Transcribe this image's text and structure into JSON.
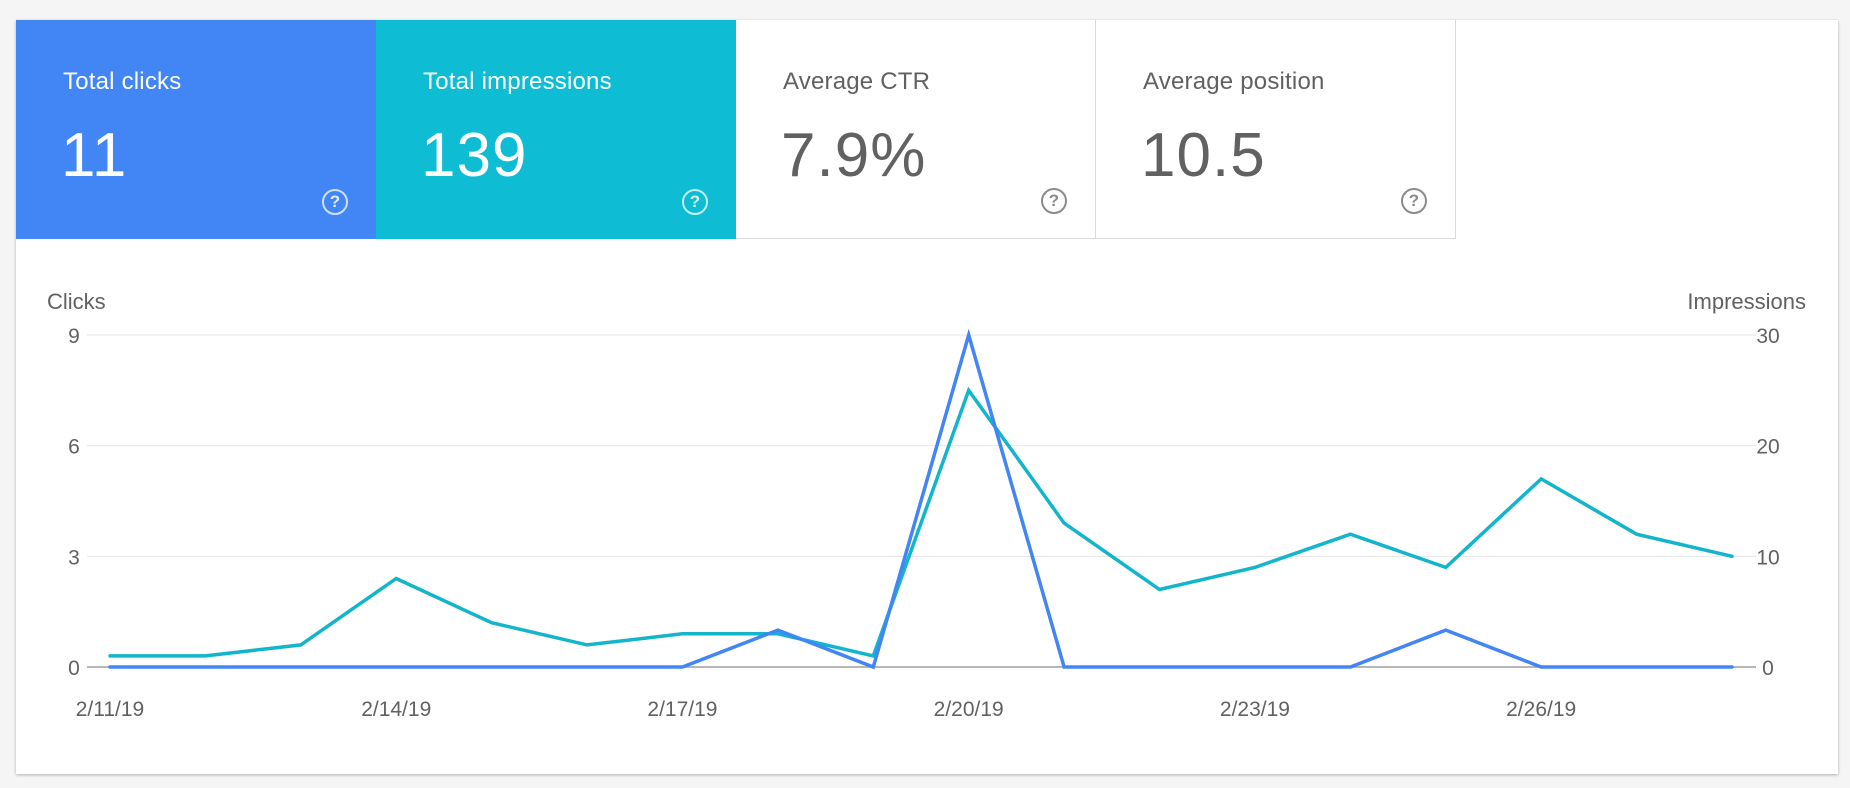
{
  "tiles": [
    {
      "label": "Total clicks",
      "value": "11",
      "active": true,
      "color": "#4285f4",
      "help_icon": "help-circle-icon"
    },
    {
      "label": "Total impressions",
      "value": "139",
      "active": true,
      "color": "#0ebcd4",
      "help_icon": "help-circle-icon"
    },
    {
      "label": "Average CTR",
      "value": "7.9%",
      "active": false,
      "color": "#ffffff",
      "help_icon": "help-circle-icon"
    },
    {
      "label": "Average position",
      "value": "10.5",
      "active": false,
      "color": "#ffffff",
      "help_icon": "help-circle-icon"
    }
  ],
  "help_glyph": "?",
  "chart_data": {
    "type": "line",
    "x": [
      "2/11/19",
      "2/12/19",
      "2/13/19",
      "2/14/19",
      "2/15/19",
      "2/16/19",
      "2/17/19",
      "2/18/19",
      "2/19/19",
      "2/20/19",
      "2/21/19",
      "2/22/19",
      "2/23/19",
      "2/24/19",
      "2/25/19",
      "2/26/19",
      "2/27/19",
      "2/28/19"
    ],
    "x_ticks": [
      "2/11/19",
      "2/14/19",
      "2/17/19",
      "2/20/19",
      "2/23/19",
      "2/26/19"
    ],
    "left_axis": {
      "label": "Clicks",
      "ticks": [
        "0",
        "3",
        "6",
        "9"
      ],
      "range": [
        0,
        9
      ]
    },
    "right_axis": {
      "label": "Impressions",
      "ticks": [
        "0",
        "10",
        "20",
        "30"
      ],
      "range": [
        0,
        30
      ]
    },
    "series": [
      {
        "name": "Total impressions",
        "axis": "right",
        "color": "#12b5cb",
        "values": [
          1,
          1,
          2,
          8,
          4,
          2,
          3,
          3,
          1,
          25,
          13,
          7,
          9,
          12,
          9,
          17,
          12,
          10
        ]
      },
      {
        "name": "Total clicks",
        "axis": "left",
        "color": "#4285f4",
        "values": [
          0,
          0,
          0,
          0,
          0,
          0,
          0,
          1,
          0,
          9,
          0,
          0,
          0,
          0,
          1,
          0,
          0,
          0
        ]
      }
    ],
    "grid": true
  }
}
